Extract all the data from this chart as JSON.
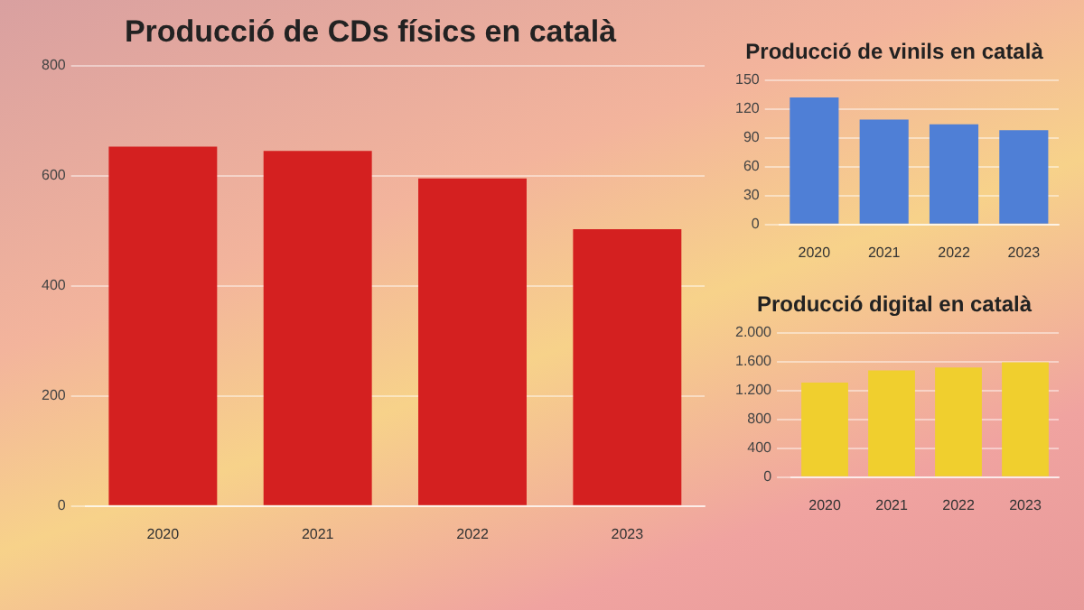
{
  "chart_data": [
    {
      "type": "bar",
      "title": "Producció de CDs físics en català",
      "categories": [
        "2020",
        "2021",
        "2022",
        "2023"
      ],
      "values": [
        653,
        645,
        595,
        503
      ],
      "color": "#d42020",
      "ylim": [
        0,
        800
      ],
      "yticks": [
        0,
        200,
        400,
        600,
        800
      ],
      "grid": "y"
    },
    {
      "type": "bar",
      "title": "Producció de vinils en català",
      "categories": [
        "2020",
        "2021",
        "2022",
        "2023"
      ],
      "values": [
        132,
        109,
        104,
        98
      ],
      "color": "#4f7fd6",
      "ylim": [
        0,
        150
      ],
      "yticks": [
        0,
        30,
        60,
        90,
        120,
        150
      ],
      "grid": "y"
    },
    {
      "type": "bar",
      "title": "Producció digital en català",
      "categories": [
        "2020",
        "2021",
        "2022",
        "2023"
      ],
      "values": [
        1310,
        1480,
        1520,
        1590
      ],
      "color": "#f0cf2e",
      "ylim": [
        0,
        2000
      ],
      "yticks": [
        0,
        400,
        800,
        {
          "value": 1200,
          "label": "1.200"
        },
        {
          "value": 1600,
          "label": "1.600"
        },
        {
          "value": 2000,
          "label": "2.000"
        }
      ],
      "grid": "y"
    }
  ]
}
